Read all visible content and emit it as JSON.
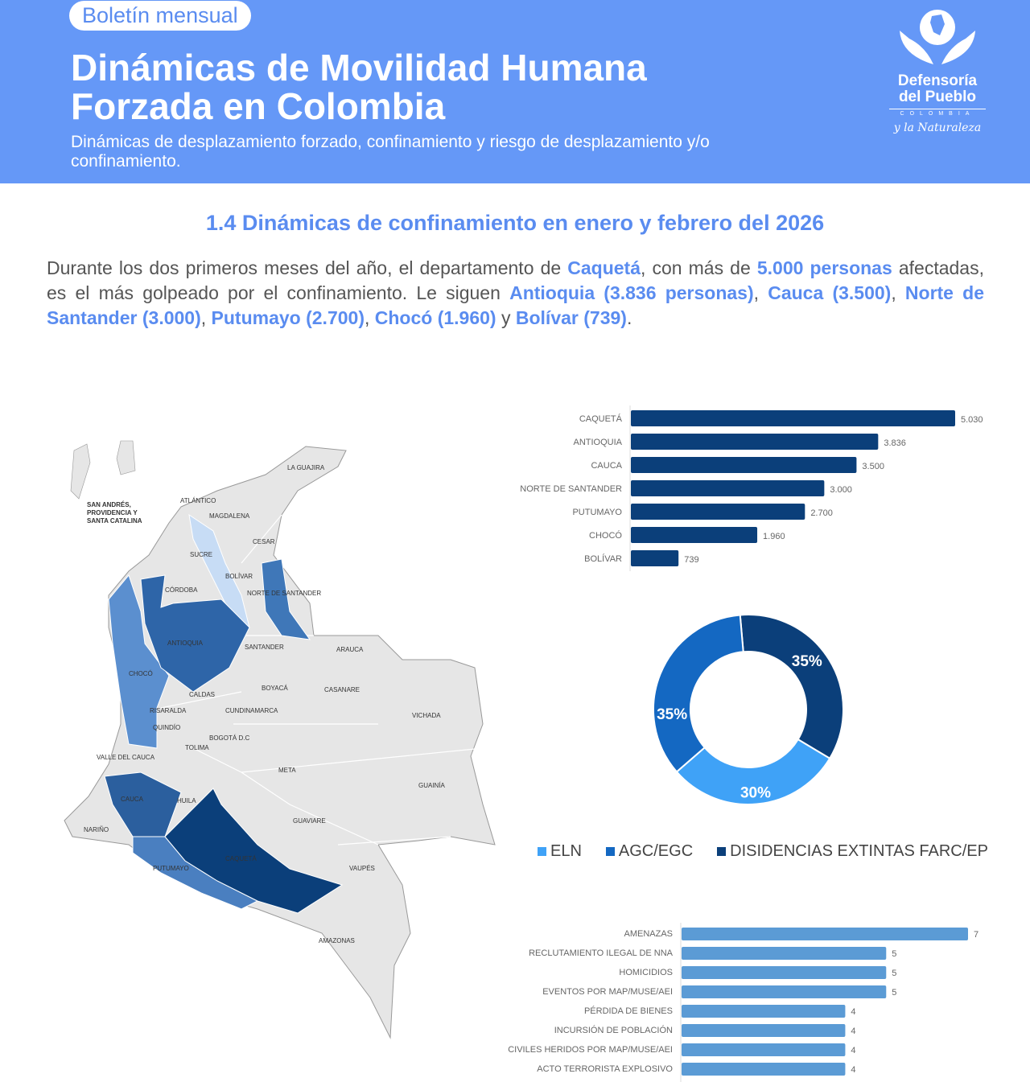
{
  "header": {
    "badge": "Boletín mensual",
    "title": "Dinámicas de Movilidad Humana Forzada en Colombia",
    "subtitle": "Dinámicas de desplazamiento forzado, confinamiento y riesgo de desplazamiento y/o confinamiento."
  },
  "logo": {
    "name_line1": "Defensoría",
    "name_line2": "del Pueblo",
    "country": "COLOMBIA",
    "slogan": "y la Naturaleza"
  },
  "section": {
    "heading": "1.4 Dinámicas de confinamiento en enero y febrero del 2026",
    "paragraph": [
      {
        "t": "Durante los dos primeros meses del año, el departamento de "
      },
      {
        "t": "Caquetá",
        "b": true
      },
      {
        "t": ", con más de "
      },
      {
        "t": "5.000 personas",
        "b": true
      },
      {
        "t": " afectadas, es el más golpeado por el confinamiento. Le siguen "
      },
      {
        "t": "Antioquia (3.836 personas)",
        "b": true
      },
      {
        "t": ", "
      },
      {
        "t": "Cauca (3.500)",
        "b": true
      },
      {
        "t": ", "
      },
      {
        "t": "Norte de Santander (3.000)",
        "b": true
      },
      {
        "t": ", "
      },
      {
        "t": "Putumayo (2.700)",
        "b": true
      },
      {
        "t": ", "
      },
      {
        "t": "Chocó (1.960)",
        "b": true
      },
      {
        "t": " y "
      },
      {
        "t": "Bolívar (739)",
        "b": true
      },
      {
        "t": "."
      }
    ]
  },
  "colors": {
    "header": "#6598f7",
    "accent": "#5a8cf0",
    "dark": "#0b3f7a",
    "eln": "#3fa2f7",
    "agc": "#1468c2",
    "farc": "#0b3f7a",
    "bars2": "#5b9bd5"
  },
  "map": {
    "labels": [
      {
        "t": "SAN ANDRÉS, PROVIDENCIA Y SANTA CATALINA"
      },
      {
        "t": "LA GUAJIRA"
      },
      {
        "t": "ATLÁNTICO"
      },
      {
        "t": "MAGDALENA"
      },
      {
        "t": "CESAR"
      },
      {
        "t": "SUCRE"
      },
      {
        "t": "BOLÍVAR"
      },
      {
        "t": "CÓRDOBA"
      },
      {
        "t": "NORTE DE SANTANDER"
      },
      {
        "t": "ANTIOQUIA"
      },
      {
        "t": "SANTANDER"
      },
      {
        "t": "ARAUCA"
      },
      {
        "t": "CHOCÓ"
      },
      {
        "t": "CALDAS"
      },
      {
        "t": "BOYACÁ"
      },
      {
        "t": "CASANARE"
      },
      {
        "t": "RISARALDA"
      },
      {
        "t": "CUNDINAMARCA"
      },
      {
        "t": "VICHADA"
      },
      {
        "t": "QUINDÍO"
      },
      {
        "t": "BOGOTÁ D.C"
      },
      {
        "t": "TOLIMA"
      },
      {
        "t": "VALLE DEL CAUCA"
      },
      {
        "t": "META"
      },
      {
        "t": "CAUCA"
      },
      {
        "t": "HUILA"
      },
      {
        "t": "GUAINÍA"
      },
      {
        "t": "NARIÑO"
      },
      {
        "t": "GUAVIARE"
      },
      {
        "t": "CAQUETÁ"
      },
      {
        "t": "PUTUMAYO"
      },
      {
        "t": "VAUPÉS"
      },
      {
        "t": "AMAZONAS"
      }
    ]
  },
  "chart_data": [
    {
      "type": "bar",
      "orientation": "horizontal",
      "categories": [
        "CAQUETÁ",
        "ANTIOQUIA",
        "CAUCA",
        "NORTE DE SANTANDER",
        "PUTUMAYO",
        "CHOCÓ",
        "BOLÍVAR"
      ],
      "values": [
        5030,
        3836,
        3500,
        3000,
        2700,
        1960,
        739
      ],
      "labels": [
        "5.030",
        "3.836",
        "3.500",
        "3.000",
        "2.700",
        "1.960",
        "739"
      ],
      "color": "#0b3f7a"
    },
    {
      "type": "pie",
      "variant": "donut",
      "categories": [
        "ELN",
        "AGC/EGC",
        "DISIDENCIAS EXTINTAS FARC/EP"
      ],
      "values": [
        30,
        35,
        35
      ],
      "labels": [
        "30%",
        "35%",
        "35%"
      ],
      "colors": [
        "#3fa2f7",
        "#1468c2",
        "#0b3f7a"
      ],
      "legend": "bottom"
    },
    {
      "type": "bar",
      "orientation": "horizontal",
      "categories": [
        "AMENAZAS",
        "RECLUTAMIENTO ILEGAL DE NNA",
        "HOMICIDIOS",
        "EVENTOS POR MAP/MUSE/AEI",
        "PÉRDIDA DE BIENES",
        "INCURSIÓN DE POBLACIÓN",
        "CIVILES HERIDOS POR MAP/MUSE/AEI",
        "ACTO TERRORISTA EXPLOSIVO"
      ],
      "values": [
        7,
        5,
        5,
        5,
        4,
        4,
        4,
        4
      ],
      "color": "#5b9bd5"
    }
  ]
}
